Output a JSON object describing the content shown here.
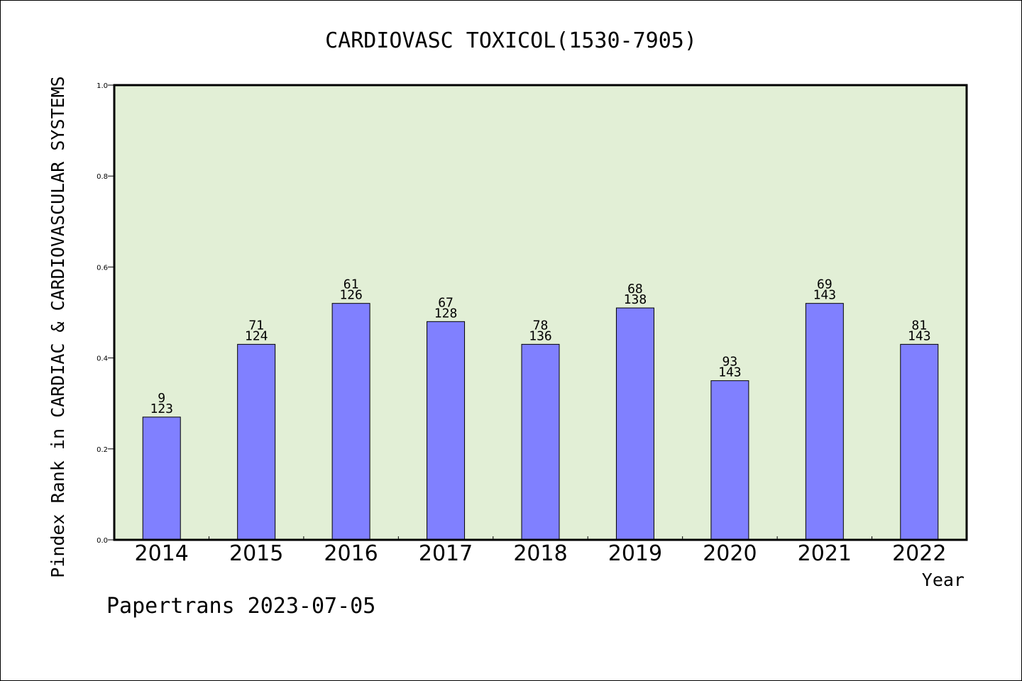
{
  "title": "CARDIOVASC TOXICOL(1530-7905)",
  "footer": "Papertrans 2023-07-05",
  "colors": {
    "plot_background": "#e2efd6",
    "bar_fill": "#8080ff",
    "bar_stroke": "#000000"
  },
  "chart_data": {
    "type": "bar",
    "title": "CARDIOVASC TOXICOL(1530-7905)",
    "xlabel": "Year",
    "ylabel": "Pindex Rank in CARDIAC & CARDIOVASCULAR SYSTEMS",
    "categories": [
      "2014",
      "2015",
      "2016",
      "2017",
      "2018",
      "2019",
      "2020",
      "2021",
      "2022"
    ],
    "values": [
      0.27,
      0.43,
      0.52,
      0.48,
      0.43,
      0.51,
      0.35,
      0.52,
      0.43
    ],
    "rank_labels": [
      "9",
      "71",
      "61",
      "67",
      "78",
      "68",
      "93",
      "69",
      "81"
    ],
    "total_labels": [
      "123",
      "124",
      "126",
      "128",
      "136",
      "138",
      "143",
      "143",
      "143"
    ],
    "ylim": [
      0,
      1.0
    ],
    "yticks": [
      "0.0",
      "0.2",
      "0.4",
      "0.6",
      "0.8",
      "1.0"
    ],
    "grid": false,
    "legend": "none"
  }
}
